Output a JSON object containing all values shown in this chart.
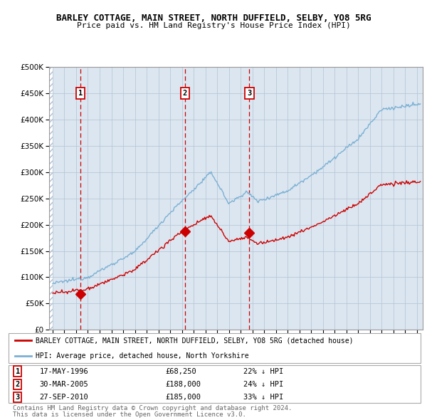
{
  "title": "BARLEY COTTAGE, MAIN STREET, NORTH DUFFIELD, SELBY, YO8 5RG",
  "subtitle": "Price paid vs. HM Land Registry's House Price Index (HPI)",
  "ylim": [
    0,
    500000
  ],
  "xlim_start": 1993.7,
  "xlim_end": 2025.5,
  "sale_dates": [
    1996.38,
    2005.25,
    2010.75
  ],
  "sale_prices": [
    68250,
    188000,
    185000
  ],
  "sale_labels": [
    "1",
    "2",
    "3"
  ],
  "sale_info": [
    {
      "label": "1",
      "date": "17-MAY-1996",
      "price": "£68,250",
      "pct": "22% ↓ HPI"
    },
    {
      "label": "2",
      "date": "30-MAR-2005",
      "price": "£188,000",
      "pct": "24% ↓ HPI"
    },
    {
      "label": "3",
      "date": "27-SEP-2010",
      "price": "£185,000",
      "pct": "33% ↓ HPI"
    }
  ],
  "legend_line1": "BARLEY COTTAGE, MAIN STREET, NORTH DUFFIELD, SELBY, YO8 5RG (detached house)",
  "legend_line2": "HPI: Average price, detached house, North Yorkshire",
  "footer1": "Contains HM Land Registry data © Crown copyright and database right 2024.",
  "footer2": "This data is licensed under the Open Government Licence v3.0.",
  "red_color": "#cc0000",
  "blue_color": "#7ab0d4",
  "bg_color": "#dce6f0",
  "grid_color": "#b8c8d8"
}
